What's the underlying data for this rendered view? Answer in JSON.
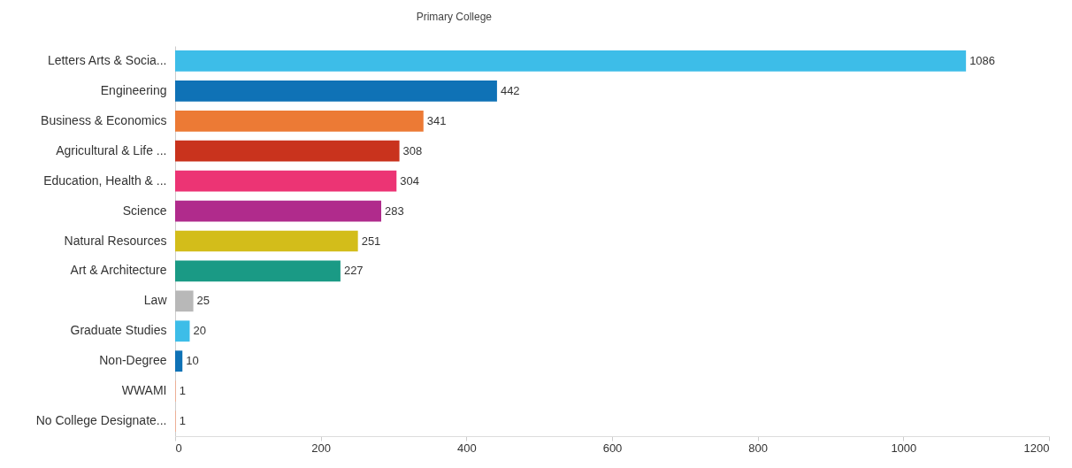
{
  "chart_data": {
    "type": "bar",
    "orientation": "horizontal",
    "title": "Primary College",
    "categories": [
      "Letters Arts & Socia...",
      "Engineering",
      "Business & Economics",
      "Agricultural & Life ...",
      "Education, Health & ...",
      "Science",
      "Natural Resources",
      "Art & Architecture",
      "Law",
      "Graduate Studies",
      "Non-Degree",
      "WWAMI",
      "No College Designate..."
    ],
    "values": [
      1086,
      442,
      341,
      308,
      304,
      283,
      251,
      227,
      25,
      20,
      10,
      1,
      1
    ],
    "colors": [
      "#3dbde8",
      "#0f72b6",
      "#ec7a35",
      "#c9331d",
      "#ec3474",
      "#b02b8c",
      "#d3bd1a",
      "#1a9a85",
      "#b8b8b8",
      "#3dbde8",
      "#0f72b6",
      "#f4a98a",
      "#f4a98a"
    ],
    "xlim": [
      0,
      1200
    ],
    "xticks": [
      0,
      200,
      400,
      600,
      800,
      1000,
      1200
    ],
    "data_labels": true,
    "grid": false
  }
}
